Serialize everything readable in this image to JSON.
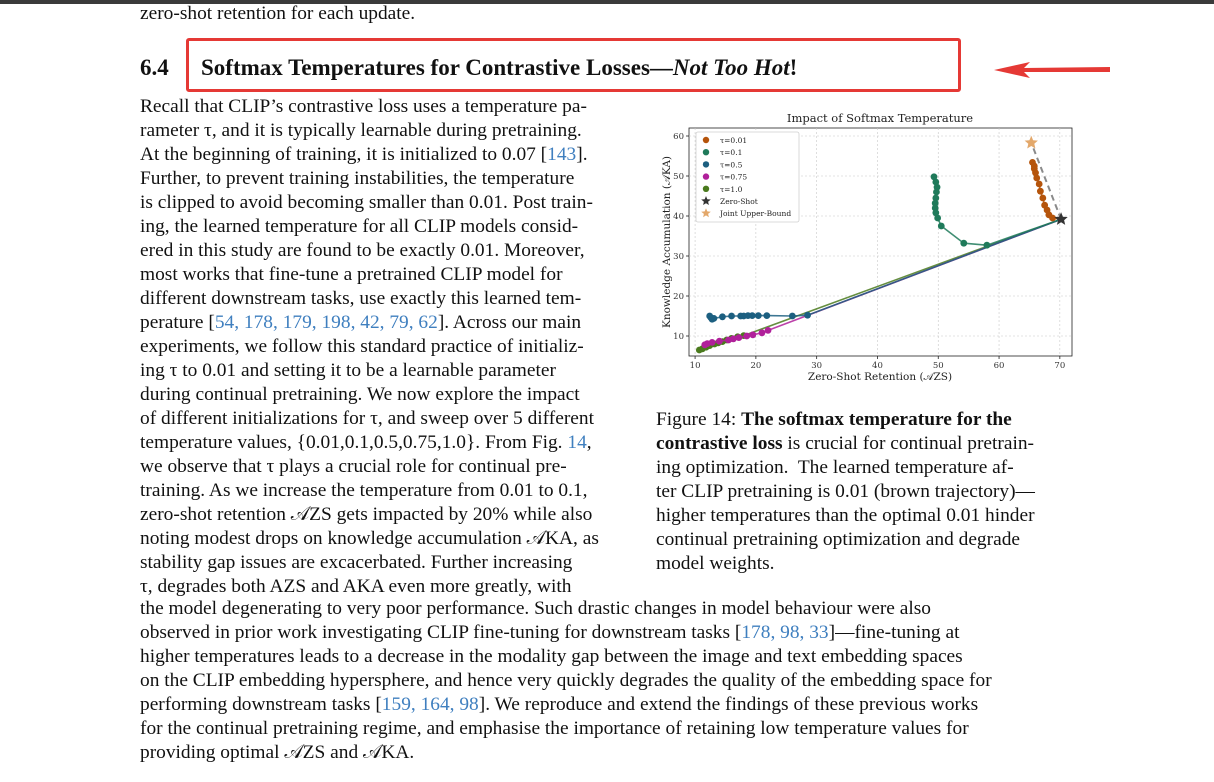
{
  "top_line": "zero-shot retention for each update.",
  "section": {
    "number": "6.4",
    "title_main": "Softmax Temperatures for Contrastive Losses—",
    "title_italic": "Not Too Hot",
    "title_end": "!"
  },
  "left_column": [
    "Recall that CLIP’s contrastive loss uses a temperature pa-",
    "rameter τ, and it is typically learnable during pretraining.",
    "At the beginning of training, it is initialized to 0.07 [",
    "Further, to prevent training instabilities, the temperature",
    "is clipped to avoid becoming smaller than 0.01. Post train-",
    "ing, the learned temperature for all CLIP models consid-",
    "ered in this study are found to be exactly 0.01. Moreover,",
    "most works that fine-tune a pretrained CLIP model for",
    "different downstream tasks, use exactly this learned tem-",
    "perature [",
    "experiments, we follow this standard practice of initializ-",
    "ing τ to 0.01 and setting it to be a learnable parameter",
    "during continual pretraining. We now explore the impact",
    "of different initializations for τ, and sweep over 5 different",
    "temperature values, {0.01,0.1,0.5,0.75,1.0}. From Fig. ",
    "we observe that τ plays a crucial role for continual pre-",
    "training. As we increase the temperature from 0.01 to 0.1,",
    "zero-shot retention 𝒜ZS gets impacted by 20% while also",
    "noting modest drops on knowledge accumulation 𝒜KA, as",
    "stability gap issues are excacerbated. Further increasing",
    "τ, degrades both AZS and AKA even more greatly, with"
  ],
  "citations": {
    "c143": "143",
    "c_list": "54, 178, 179, 198, 42, 79, 62",
    "fig14": "14",
    "c_list2": "178, 98, 33",
    "c_list3": "159, 164, 98"
  },
  "tail_after_c143": "].",
  "tail_after_list": "]. Across our main",
  "tail_after_fig": ",",
  "full_width": [
    "the model degenerating to very poor performance. Such drastic changes in model behaviour were also",
    "observed in prior work investigating CLIP fine-tuning for downstream tasks [",
    "higher temperatures leads to a decrease in the modality gap between the image and text embedding spaces",
    "on the CLIP embedding hypersphere, and hence very quickly degrades the quality of the embedding space for",
    "performing downstream tasks [",
    "for the continual pretraining regime, and emphasise the importance of retaining low temperature values for",
    "providing optimal 𝒜ZS and 𝒜KA."
  ],
  "full_tail_2": "]—fine-tuning at",
  "full_tail_5": "]. We reproduce and extend the findings of these previous works",
  "caption": {
    "prefix": "Figure 14: ",
    "bold": "The softmax temperature for the",
    "bold2": "contrastive loss",
    "lines": [
      " is crucial for continual pretrain-",
      "ing optimization.  The learned temperature af-",
      "ter CLIP pretraining is 0.01 (brown trajectory)—",
      "higher temperatures than the optimal 0.01 hinder",
      "continual pretraining optimization and degrade",
      "model weights."
    ]
  },
  "chart_data": {
    "type": "scatter",
    "title": "Impact of Softmax Temperature",
    "xlabel": "Zero-Shot Retention (𝒜ZS)",
    "ylabel": "Knowledge Accumulation (𝒜KA)",
    "xlim": [
      9,
      72
    ],
    "ylim": [
      5,
      62
    ],
    "xticks": [
      10,
      20,
      30,
      40,
      50,
      60,
      70
    ],
    "yticks": [
      10,
      20,
      30,
      40,
      50,
      60
    ],
    "grid": true,
    "legend_position": "top-left",
    "zero_shot": {
      "x": 70.2,
      "y": 39.2
    },
    "joint_upper": {
      "x": 65.3,
      "y": 58.3
    },
    "series": [
      {
        "name": "τ=0.01",
        "color": "#b5540b",
        "x": [
          70.2,
          68.8,
          68.2,
          67.9,
          67.5,
          67.2,
          66.8,
          66.6,
          66.2,
          66.0,
          65.8,
          65.8,
          65.5
        ],
        "y": [
          39.2,
          39.5,
          40.3,
          41.5,
          42.7,
          44.5,
          46.2,
          48.0,
          49.5,
          50.8,
          51.8,
          52.5,
          53.4
        ]
      },
      {
        "name": "τ=0.1",
        "color": "#1f7a5a",
        "x": [
          70.2,
          58.0,
          54.2,
          50.5,
          49.9,
          49.6,
          49.5,
          49.5,
          49.6,
          49.7,
          49.8,
          49.6,
          49.3
        ],
        "y": [
          39.2,
          32.7,
          33.2,
          37.5,
          39.5,
          40.8,
          42.0,
          43.2,
          44.5,
          46.0,
          47.2,
          48.5,
          49.8
        ]
      },
      {
        "name": "τ=0.5",
        "color": "#1c5f80",
        "x": [
          70.2,
          28.5,
          26.0,
          21.8,
          20.4,
          19.4,
          18.7,
          18.0,
          17.5,
          16.0,
          14.5,
          13.1,
          12.8,
          12.6,
          12.4
        ],
        "y": [
          39.2,
          15.2,
          15.0,
          15.1,
          15.1,
          15.1,
          15.1,
          15.0,
          15.0,
          15.0,
          14.8,
          14.4,
          14.2,
          14.6,
          15.0
        ]
      },
      {
        "name": "τ=0.75",
        "color": "#b0209a",
        "x": [
          70.2,
          22.0,
          21.0,
          19.5,
          18.5,
          17.2,
          16.3,
          15.5,
          14.0,
          12.8,
          12.0,
          11.6
        ],
        "y": [
          39.2,
          11.4,
          10.8,
          10.3,
          10.0,
          9.6,
          9.3,
          9.0,
          8.7,
          8.4,
          8.1,
          7.8
        ]
      },
      {
        "name": "τ=1.0",
        "color": "#4a7a1d",
        "x": [
          70.2,
          18.0,
          17.0,
          16.0,
          15.2,
          14.5,
          13.8,
          13.2,
          12.4,
          11.8,
          11.2,
          10.7
        ],
        "y": [
          39.2,
          10.1,
          9.8,
          9.4,
          9.0,
          8.6,
          8.3,
          8.0,
          7.6,
          7.2,
          6.8,
          6.5
        ]
      }
    ],
    "legend_extra": [
      "Zero-Shot",
      "Joint Upper-Bound"
    ]
  }
}
